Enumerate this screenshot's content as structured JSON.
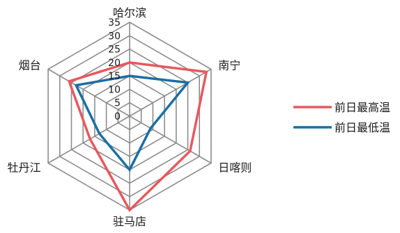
{
  "chart_data": {
    "type": "radar",
    "categories": [
      "哈尔滨",
      "南宁",
      "日喀则",
      "驻马店",
      "牡丹江",
      "烟台"
    ],
    "rmin": 0,
    "rmax": 35,
    "ticks": [
      0,
      5,
      10,
      15,
      20,
      25,
      30,
      35
    ],
    "series": [
      {
        "name": "前日最高温",
        "color": "#e8585d",
        "values": [
          20,
          33,
          26,
          35,
          17,
          26
        ]
      },
      {
        "name": "前日最低温",
        "color": "#1a6fa3",
        "values": [
          15,
          25,
          9,
          20,
          13,
          23
        ]
      }
    ],
    "legend": "right",
    "grid": true
  }
}
